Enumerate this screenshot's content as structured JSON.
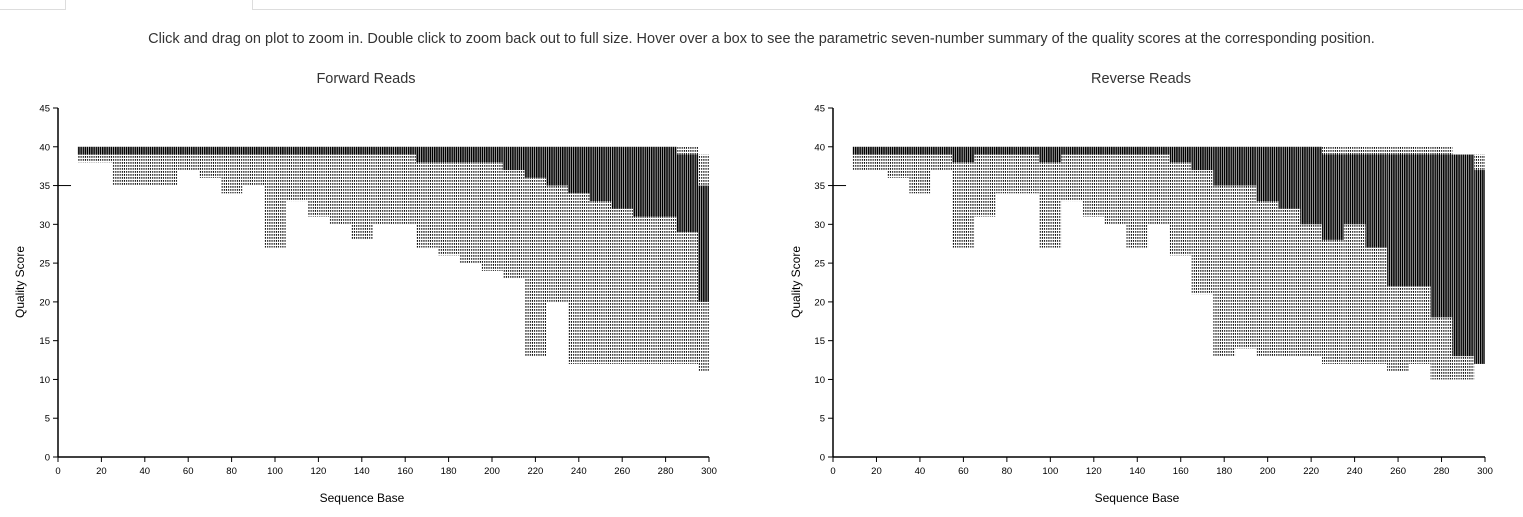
{
  "instructions": "Click and drag on plot to zoom in. Double click to zoom back out to full size. Hover over a box to see the parametric seven-number summary of the quality scores at the corresponding position.",
  "colors": {
    "box": "#000000",
    "whisker": "#000000",
    "axis": "#000000",
    "text": "#333333"
  },
  "chart_data": [
    {
      "type": "box",
      "title": "Forward Reads",
      "xlabel": "Sequence Base",
      "ylabel": "Quality Score",
      "xlim": [
        0,
        300
      ],
      "ylim": [
        0,
        45
      ],
      "xticks": [
        0,
        20,
        40,
        60,
        80,
        100,
        120,
        140,
        160,
        180,
        200,
        220,
        240,
        260,
        280,
        300
      ],
      "yticks": [
        0,
        5,
        10,
        15,
        20,
        25,
        30,
        35,
        40,
        45
      ],
      "grid": false,
      "summary_fields": [
        "position",
        "min",
        "box_bottom",
        "box_top",
        "max"
      ],
      "boxes": [
        [
          5,
          35,
          35,
          35,
          35
        ],
        [
          10,
          38,
          39,
          40,
          40
        ],
        [
          20,
          38,
          39,
          40,
          40
        ],
        [
          30,
          35,
          39,
          40,
          40
        ],
        [
          40,
          35,
          39,
          40,
          40
        ],
        [
          50,
          35,
          39,
          40,
          40
        ],
        [
          60,
          37,
          39,
          40,
          40
        ],
        [
          70,
          36,
          39,
          40,
          40
        ],
        [
          80,
          34,
          39,
          40,
          40
        ],
        [
          90,
          35,
          39,
          40,
          40
        ],
        [
          100,
          27,
          39,
          40,
          40
        ],
        [
          110,
          33,
          39,
          40,
          40
        ],
        [
          120,
          31,
          39,
          40,
          40
        ],
        [
          130,
          30,
          39,
          40,
          40
        ],
        [
          140,
          28,
          39,
          40,
          40
        ],
        [
          150,
          30,
          39,
          40,
          40
        ],
        [
          160,
          30,
          39,
          40,
          40
        ],
        [
          170,
          27,
          38,
          40,
          40
        ],
        [
          180,
          26,
          38,
          40,
          40
        ],
        [
          190,
          25,
          38,
          40,
          40
        ],
        [
          200,
          24,
          38,
          40,
          40
        ],
        [
          210,
          23,
          37,
          40,
          40
        ],
        [
          220,
          13,
          36,
          40,
          40
        ],
        [
          230,
          20,
          35,
          40,
          40
        ],
        [
          240,
          12,
          34,
          40,
          40
        ],
        [
          250,
          12,
          33,
          40,
          40
        ],
        [
          260,
          12,
          32,
          40,
          40
        ],
        [
          270,
          12,
          31,
          40,
          40
        ],
        [
          280,
          12,
          31,
          40,
          40
        ],
        [
          290,
          12,
          29,
          39,
          40
        ],
        [
          300,
          11,
          20,
          35,
          39
        ]
      ]
    },
    {
      "type": "box",
      "title": "Reverse Reads",
      "xlabel": "Sequence Base",
      "ylabel": "Quality Score",
      "xlim": [
        0,
        300
      ],
      "ylim": [
        0,
        45
      ],
      "xticks": [
        0,
        20,
        40,
        60,
        80,
        100,
        120,
        140,
        160,
        180,
        200,
        220,
        240,
        260,
        280,
        300
      ],
      "yticks": [
        0,
        5,
        10,
        15,
        20,
        25,
        30,
        35,
        40,
        45
      ],
      "grid": false,
      "summary_fields": [
        "position",
        "min",
        "box_bottom",
        "box_top",
        "max"
      ],
      "boxes": [
        [
          5,
          34,
          35,
          35,
          35
        ],
        [
          10,
          37,
          39,
          40,
          40
        ],
        [
          20,
          37,
          39,
          40,
          40
        ],
        [
          30,
          36,
          39,
          40,
          40
        ],
        [
          40,
          34,
          39,
          40,
          40
        ],
        [
          50,
          37,
          39,
          40,
          40
        ],
        [
          60,
          27,
          38,
          40,
          40
        ],
        [
          70,
          31,
          39,
          40,
          40
        ],
        [
          80,
          34,
          39,
          40,
          40
        ],
        [
          90,
          34,
          39,
          40,
          40
        ],
        [
          100,
          27,
          38,
          40,
          40
        ],
        [
          110,
          33,
          39,
          40,
          40
        ],
        [
          120,
          31,
          39,
          40,
          40
        ],
        [
          130,
          30,
          39,
          40,
          40
        ],
        [
          140,
          27,
          39,
          40,
          40
        ],
        [
          150,
          30,
          39,
          40,
          40
        ],
        [
          160,
          26,
          38,
          40,
          40
        ],
        [
          170,
          21,
          37,
          40,
          40
        ],
        [
          180,
          13,
          35,
          40,
          40
        ],
        [
          190,
          14,
          35,
          40,
          40
        ],
        [
          200,
          13,
          33,
          40,
          40
        ],
        [
          210,
          13,
          32,
          40,
          40
        ],
        [
          220,
          13,
          30,
          40,
          40
        ],
        [
          230,
          12,
          28,
          39,
          40
        ],
        [
          240,
          12,
          30,
          39,
          40
        ],
        [
          250,
          12,
          27,
          39,
          40
        ],
        [
          260,
          11,
          22,
          39,
          40
        ],
        [
          270,
          12,
          22,
          39,
          40
        ],
        [
          280,
          10,
          18,
          39,
          40
        ],
        [
          290,
          10,
          13,
          39,
          39
        ],
        [
          300,
          12,
          12,
          37,
          39
        ]
      ]
    }
  ]
}
